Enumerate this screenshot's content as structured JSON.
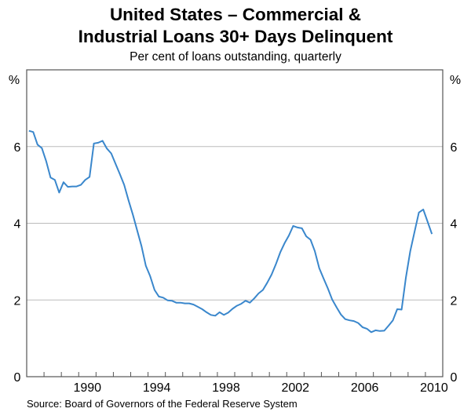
{
  "chart_data": {
    "type": "line",
    "title_lines": [
      "United States – Commercial &",
      "Industrial Loans 30+ Days Delinquent"
    ],
    "subtitle": "Per cent of loans outstanding, quarterly",
    "ylabel_left": "%",
    "ylabel_right": "%",
    "ylim": [
      0,
      8
    ],
    "yticks": [
      0,
      2,
      4,
      6
    ],
    "ytick_labels": [
      "0",
      "2",
      "4",
      "6"
    ],
    "xlim": [
      1987,
      2011
    ],
    "xtick_labels": [
      "1990",
      "1994",
      "1998",
      "2002",
      "2006",
      "2010"
    ],
    "xtick_label_years": [
      1990,
      1994,
      1998,
      2002,
      2006,
      2010
    ],
    "grid": true,
    "x_start": 1987.125,
    "x_step": 0.25,
    "series": [
      {
        "name": "C&I loans 30+ days delinquent",
        "color": "#3a87cc",
        "values": [
          6.41,
          6.38,
          6.05,
          5.96,
          5.62,
          5.19,
          5.13,
          4.8,
          5.07,
          4.95,
          4.96,
          4.96,
          5.0,
          5.13,
          5.21,
          6.08,
          6.1,
          6.15,
          5.95,
          5.82,
          5.55,
          5.28,
          5.0,
          4.6,
          4.22,
          3.81,
          3.4,
          2.89,
          2.62,
          2.26,
          2.09,
          2.06,
          1.99,
          1.98,
          1.93,
          1.93,
          1.91,
          1.91,
          1.88,
          1.82,
          1.76,
          1.68,
          1.61,
          1.59,
          1.68,
          1.61,
          1.67,
          1.77,
          1.85,
          1.9,
          1.98,
          1.93,
          2.04,
          2.17,
          2.26,
          2.45,
          2.66,
          2.93,
          3.24,
          3.48,
          3.68,
          3.93,
          3.89,
          3.87,
          3.66,
          3.57,
          3.27,
          2.83,
          2.56,
          2.3,
          2.01,
          1.81,
          1.62,
          1.5,
          1.47,
          1.45,
          1.4,
          1.29,
          1.25,
          1.16,
          1.21,
          1.19,
          1.2,
          1.33,
          1.47,
          1.76,
          1.75,
          2.59,
          3.27,
          3.78,
          4.28,
          4.36,
          4.04,
          3.72
        ]
      }
    ],
    "source": "Source: Board of Governors of the Federal Reserve System"
  }
}
